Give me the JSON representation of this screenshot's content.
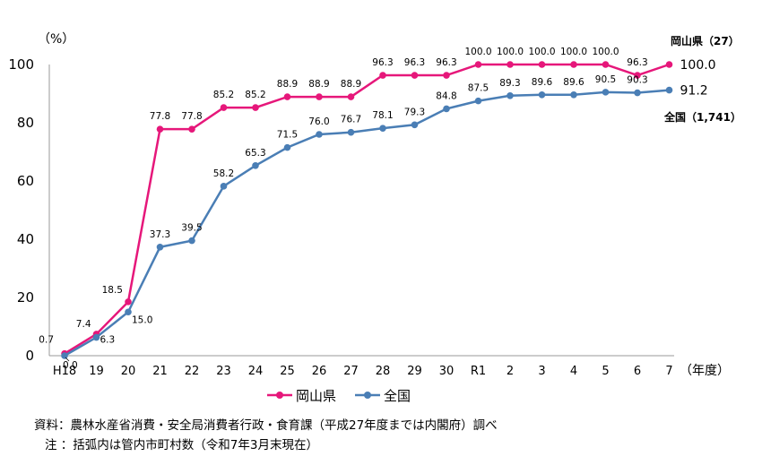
{
  "chart_data": {
    "type": "line",
    "y_unit": "（%）",
    "x_unit": "（年度）",
    "ylim": [
      0,
      100
    ],
    "yticks": [
      "0",
      "20",
      "40",
      "60",
      "80",
      "100"
    ],
    "categories": [
      "H18",
      "19",
      "20",
      "21",
      "22",
      "23",
      "24",
      "25",
      "26",
      "27",
      "28",
      "29",
      "30",
      "R1",
      "2",
      "3",
      "4",
      "5",
      "6",
      "7"
    ],
    "series": [
      {
        "name": "岡山県",
        "color": "#e6177a",
        "values": [
          0.7,
          7.4,
          18.5,
          77.8,
          77.8,
          85.2,
          85.2,
          88.9,
          88.9,
          88.9,
          96.3,
          96.3,
          96.3,
          100.0,
          100.0,
          100.0,
          100.0,
          100.0,
          96.3,
          100.0
        ],
        "labels": [
          "0.7",
          "7.4",
          "18.5",
          "77.8",
          "77.8",
          "85.2",
          "85.2",
          "88.9",
          "88.9",
          "88.9",
          "96.3",
          "96.3",
          "96.3",
          "100.0",
          "100.0",
          "100.0",
          "100.0",
          "100.0",
          "96.3",
          "100.0"
        ],
        "end_name": "岡山県（27）"
      },
      {
        "name": "全国",
        "color": "#4a7eb5",
        "values": [
          0.0,
          6.3,
          15.0,
          37.3,
          39.5,
          58.2,
          65.3,
          71.5,
          76.0,
          76.7,
          78.1,
          79.3,
          84.8,
          87.5,
          89.3,
          89.6,
          89.6,
          90.5,
          90.3,
          91.2
        ],
        "labels": [
          "0.0",
          "6.3",
          "15.0",
          "37.3",
          "39.5",
          "58.2",
          "65.3",
          "71.5",
          "76.0",
          "76.7",
          "78.1",
          "79.3",
          "84.8",
          "87.5",
          "89.3",
          "89.6",
          "89.6",
          "90.5",
          "90.3",
          "91.2"
        ],
        "end_name": "全国（1,741）"
      }
    ]
  },
  "notes": {
    "source": "資料：農林水産省消費・安全局消費者行政・食育課（平成27年度までは内閣府）調べ",
    "note": "注 ：括弧内は管内市町村数（令和7年3月末現在）"
  }
}
